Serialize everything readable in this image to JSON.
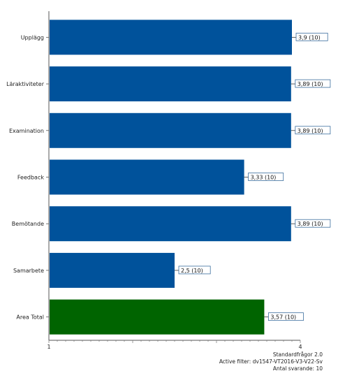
{
  "chart_data": {
    "type": "bar",
    "orientation": "horizontal",
    "categories": [
      "Upplägg",
      "Läraktiviteter",
      "Examination",
      "Feedback",
      "Bemötande",
      "Samarbete",
      "Area Total"
    ],
    "values": [
      3.9,
      3.89,
      3.89,
      3.33,
      3.89,
      2.5,
      3.57
    ],
    "counts": [
      10,
      10,
      10,
      10,
      10,
      10,
      10
    ],
    "data_labels": [
      "3,9 (10)",
      "3,89 (10)",
      "3,89 (10)",
      "3,33 (10)",
      "3,89 (10)",
      "2,5 (10)",
      "3,57 (10)"
    ],
    "bar_colors": [
      "#00529b",
      "#00529b",
      "#00529b",
      "#00529b",
      "#00529b",
      "#00529b",
      "#006400"
    ],
    "xlim": [
      1,
      4
    ],
    "x_ticks": [
      1,
      4
    ],
    "x_tick_labels": [
      "1",
      "4"
    ],
    "grid": false,
    "legend": "none"
  },
  "footer": {
    "line1": "Standardfrågor 2.0",
    "line2": "Active filter: dv1547-VT2016-V3-V22-Sv",
    "line3": "Antal svarande: 10"
  }
}
